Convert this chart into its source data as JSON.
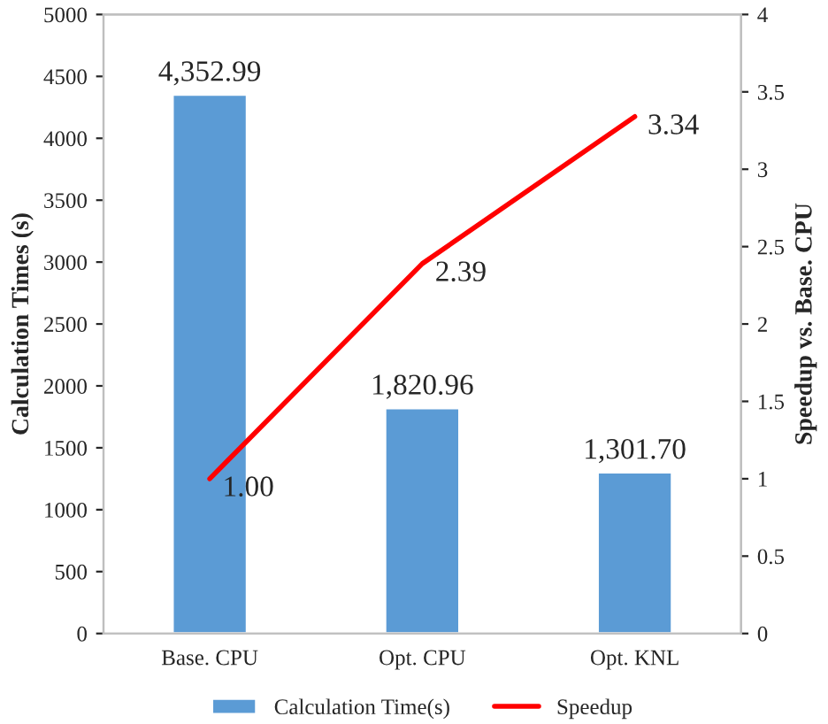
{
  "chart_data": {
    "type": "bar",
    "categories": [
      "Base. CPU",
      "Opt. CPU",
      "Opt. KNL"
    ],
    "ylabel": "Calculation Times (s)",
    "y2label": "Speedup vs. Base. CPU",
    "series": [
      {
        "name": "Calculation Time(s)",
        "color": "#5b9bd5",
        "values": [
          4352.99,
          1820.96,
          1301.7
        ],
        "value_labels": [
          "4,352.99",
          "1,820.96",
          "1,301.70"
        ]
      },
      {
        "name": "Speedup",
        "type": "line",
        "axis": "y2",
        "color": "#ff0000",
        "values": [
          1.0,
          2.39,
          3.34
        ],
        "value_labels": [
          "1.00",
          "2.39",
          "3.34"
        ]
      }
    ],
    "ylim": [
      0,
      5000
    ],
    "yticks": [
      0,
      500,
      1000,
      1500,
      2000,
      2500,
      3000,
      3500,
      4000,
      4500,
      5000
    ],
    "y2lim": [
      0,
      4
    ],
    "y2ticks": [
      0,
      0.5,
      1,
      1.5,
      2,
      2.5,
      3,
      3.5,
      4
    ],
    "legend": "bottom",
    "grid": false,
    "marker": "none",
    "line_style": "solid"
  }
}
